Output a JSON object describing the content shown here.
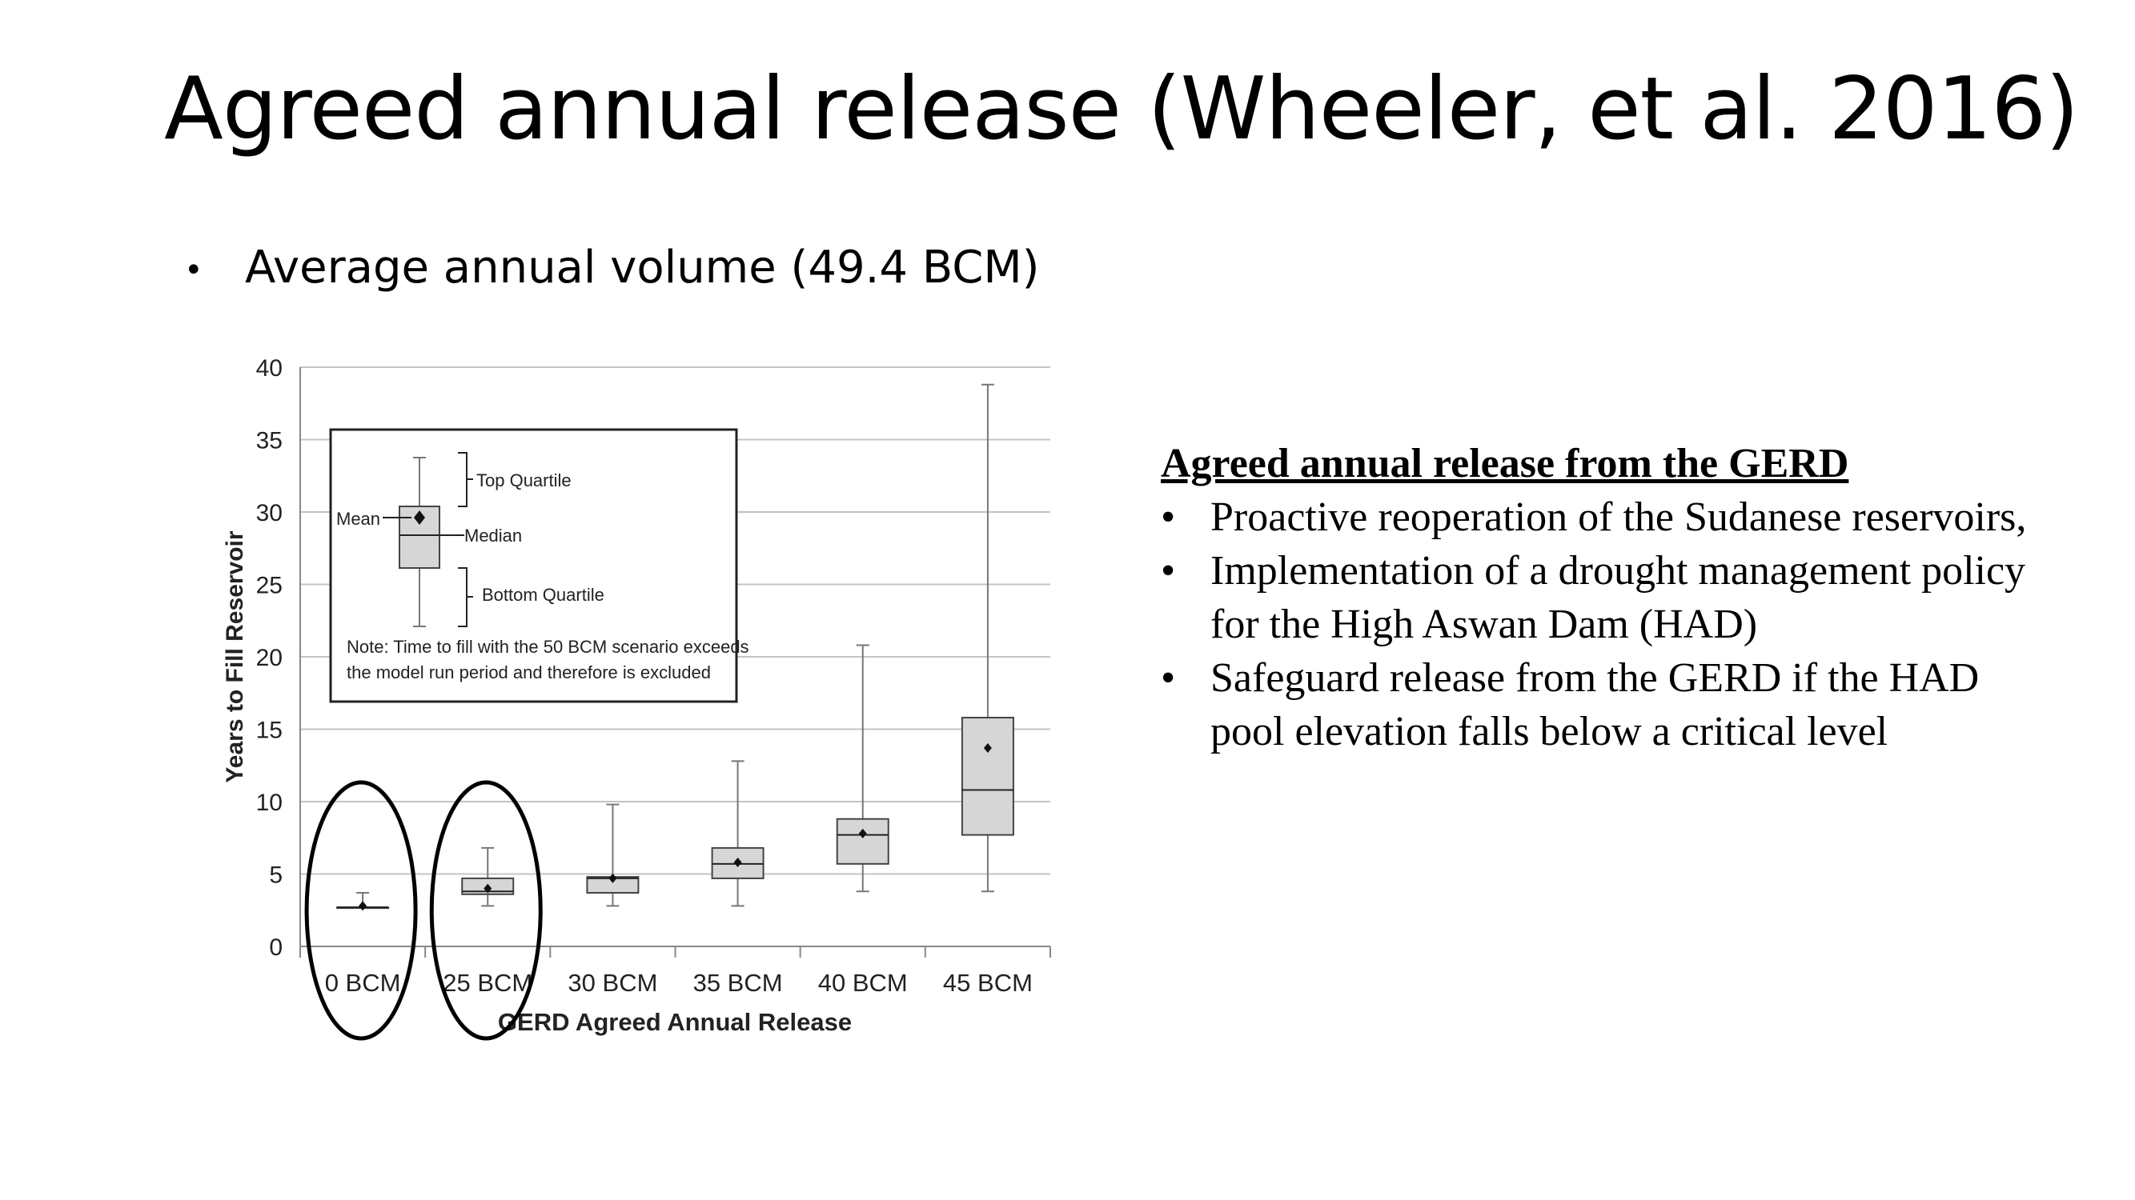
{
  "slide": {
    "title": "Agreed annual release (Wheeler, et al. 2016)",
    "bullet": "Average annual volume (49.4 BCM)"
  },
  "right_panel": {
    "heading": "Agreed annual release from the GERD",
    "items": [
      "Proactive reoperation of the Sudanese reservoirs,",
      "Implementation of a drought management policy for the High Aswan Dam (HAD)",
      "Safeguard release from the GERD if the HAD pool elevation falls below a critical level"
    ]
  },
  "chart_data": {
    "type": "box",
    "xlabel": "GERD Agreed Annual Release",
    "ylabel": "Years to Fill Reservoir",
    "ylim": [
      0,
      40
    ],
    "yticks": [
      0,
      5,
      10,
      15,
      20,
      25,
      30,
      35,
      40
    ],
    "grid": true,
    "categories": [
      "0 BCM",
      "25 BCM",
      "30 BCM",
      "35 BCM",
      "40 BCM",
      "45 BCM"
    ],
    "series": [
      {
        "min": 2.7,
        "q1": 2.7,
        "median": 2.7,
        "q3": 2.7,
        "max": 3.7,
        "mean": 2.8
      },
      {
        "min": 2.8,
        "q1": 3.6,
        "median": 3.8,
        "q3": 4.7,
        "max": 6.8,
        "mean": 4.0
      },
      {
        "min": 2.8,
        "q1": 3.7,
        "median": 4.7,
        "q3": 4.8,
        "max": 9.8,
        "mean": 4.7
      },
      {
        "min": 2.8,
        "q1": 4.7,
        "median": 5.7,
        "q3": 6.8,
        "max": 12.8,
        "mean": 5.8
      },
      {
        "min": 3.8,
        "q1": 5.7,
        "median": 7.7,
        "q3": 8.8,
        "max": 20.8,
        "mean": 7.8
      },
      {
        "min": 3.8,
        "q1": 7.7,
        "median": 10.8,
        "q3": 15.8,
        "max": 38.8,
        "mean": 13.7
      }
    ],
    "highlighted_categories": [
      "0 BCM",
      "25 BCM"
    ],
    "legend": {
      "placement": "top-left",
      "top_label": "Top Quartile",
      "mean_label": "Mean",
      "median_label": "Median",
      "bottom_label": "Bottom Quartile",
      "note_line1": "Note: Time to fill with the 50 BCM scenario exceeds",
      "note_line2": "the model run period and therefore is excluded"
    }
  }
}
